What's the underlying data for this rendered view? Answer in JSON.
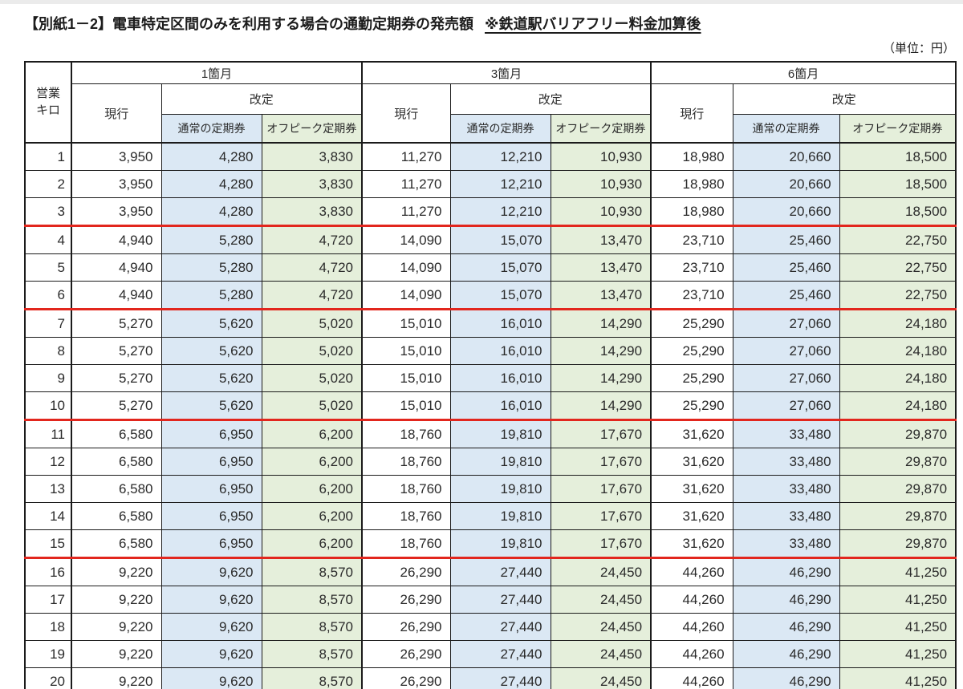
{
  "header": {
    "title_main": "【別紙1－2】電車特定区間のみを利用する場合の通勤定期券の発売額",
    "title_note": "※鉄道駅バリアフリー料金加算後",
    "unit_label": "（単位：円）"
  },
  "colors": {
    "header_blue": "#dbe8f4",
    "header_green": "#e5efdb",
    "band_line_red": "#e2261d",
    "grid_black": "#1b1b1b",
    "text": "#2a2a2a"
  },
  "table": {
    "km_header": "営業\nキロ",
    "groups": [
      "1箇月",
      "3箇月",
      "6箇月"
    ],
    "col_current": "現行",
    "col_revised": "改定",
    "col_normal": "通常の定期券",
    "col_offpeak": "オフピーク定期券",
    "rows": [
      {
        "km": "1",
        "band_end": false,
        "values": [
          "3,950",
          "4,280",
          "3,830",
          "11,270",
          "12,210",
          "10,930",
          "18,980",
          "20,660",
          "18,500"
        ]
      },
      {
        "km": "2",
        "band_end": false,
        "values": [
          "3,950",
          "4,280",
          "3,830",
          "11,270",
          "12,210",
          "10,930",
          "18,980",
          "20,660",
          "18,500"
        ]
      },
      {
        "km": "3",
        "band_end": true,
        "values": [
          "3,950",
          "4,280",
          "3,830",
          "11,270",
          "12,210",
          "10,930",
          "18,980",
          "20,660",
          "18,500"
        ]
      },
      {
        "km": "4",
        "band_end": false,
        "values": [
          "4,940",
          "5,280",
          "4,720",
          "14,090",
          "15,070",
          "13,470",
          "23,710",
          "25,460",
          "22,750"
        ]
      },
      {
        "km": "5",
        "band_end": false,
        "values": [
          "4,940",
          "5,280",
          "4,720",
          "14,090",
          "15,070",
          "13,470",
          "23,710",
          "25,460",
          "22,750"
        ]
      },
      {
        "km": "6",
        "band_end": true,
        "values": [
          "4,940",
          "5,280",
          "4,720",
          "14,090",
          "15,070",
          "13,470",
          "23,710",
          "25,460",
          "22,750"
        ]
      },
      {
        "km": "7",
        "band_end": false,
        "values": [
          "5,270",
          "5,620",
          "5,020",
          "15,010",
          "16,010",
          "14,290",
          "25,290",
          "27,060",
          "24,180"
        ]
      },
      {
        "km": "8",
        "band_end": false,
        "values": [
          "5,270",
          "5,620",
          "5,020",
          "15,010",
          "16,010",
          "14,290",
          "25,290",
          "27,060",
          "24,180"
        ]
      },
      {
        "km": "9",
        "band_end": false,
        "values": [
          "5,270",
          "5,620",
          "5,020",
          "15,010",
          "16,010",
          "14,290",
          "25,290",
          "27,060",
          "24,180"
        ]
      },
      {
        "km": "10",
        "band_end": true,
        "values": [
          "5,270",
          "5,620",
          "5,020",
          "15,010",
          "16,010",
          "14,290",
          "25,290",
          "27,060",
          "24,180"
        ]
      },
      {
        "km": "11",
        "band_end": false,
        "values": [
          "6,580",
          "6,950",
          "6,200",
          "18,760",
          "19,810",
          "17,670",
          "31,620",
          "33,480",
          "29,870"
        ]
      },
      {
        "km": "12",
        "band_end": false,
        "values": [
          "6,580",
          "6,950",
          "6,200",
          "18,760",
          "19,810",
          "17,670",
          "31,620",
          "33,480",
          "29,870"
        ]
      },
      {
        "km": "13",
        "band_end": false,
        "values": [
          "6,580",
          "6,950",
          "6,200",
          "18,760",
          "19,810",
          "17,670",
          "31,620",
          "33,480",
          "29,870"
        ]
      },
      {
        "km": "14",
        "band_end": false,
        "values": [
          "6,580",
          "6,950",
          "6,200",
          "18,760",
          "19,810",
          "17,670",
          "31,620",
          "33,480",
          "29,870"
        ]
      },
      {
        "km": "15",
        "band_end": true,
        "values": [
          "6,580",
          "6,950",
          "6,200",
          "18,760",
          "19,810",
          "17,670",
          "31,620",
          "33,480",
          "29,870"
        ]
      },
      {
        "km": "16",
        "band_end": false,
        "values": [
          "9,220",
          "9,620",
          "8,570",
          "26,290",
          "27,440",
          "24,450",
          "44,260",
          "46,290",
          "41,250"
        ]
      },
      {
        "km": "17",
        "band_end": false,
        "values": [
          "9,220",
          "9,620",
          "8,570",
          "26,290",
          "27,440",
          "24,450",
          "44,260",
          "46,290",
          "41,250"
        ]
      },
      {
        "km": "18",
        "band_end": false,
        "values": [
          "9,220",
          "9,620",
          "8,570",
          "26,290",
          "27,440",
          "24,450",
          "44,260",
          "46,290",
          "41,250"
        ]
      },
      {
        "km": "19",
        "band_end": false,
        "values": [
          "9,220",
          "9,620",
          "8,570",
          "26,290",
          "27,440",
          "24,450",
          "44,260",
          "46,290",
          "41,250"
        ]
      },
      {
        "km": "20",
        "band_end": false,
        "values": [
          "9,220",
          "9,620",
          "8,570",
          "26,290",
          "27,440",
          "24,450",
          "44,260",
          "46,290",
          "41,250"
        ]
      }
    ]
  }
}
